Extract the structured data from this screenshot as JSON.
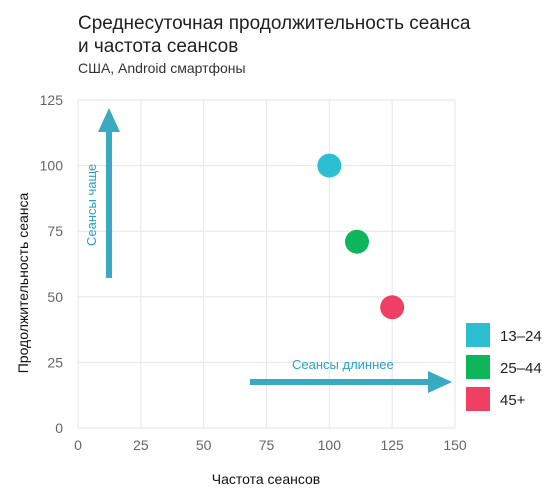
{
  "chart_data": {
    "type": "scatter",
    "title_line1": "Среднесуточная продолжительность сеанса",
    "title_line2": "и частота сеансов",
    "subtitle": "США, Android смартфоны",
    "xlabel": "Частота сеансов",
    "ylabel": "Продолжительность сеанса",
    "xlim": [
      0,
      150
    ],
    "ylim": [
      0,
      125
    ],
    "xticks": [
      0,
      25,
      50,
      75,
      100,
      125,
      150
    ],
    "yticks": [
      0,
      25,
      50,
      75,
      100,
      125
    ],
    "grid": true,
    "legend_position": "right",
    "points": [
      {
        "name": "13–24",
        "x": 100,
        "y": 100,
        "color": "#2bbfd1"
      },
      {
        "name": "25–44",
        "x": 111,
        "y": 71,
        "color": "#0fb55a"
      },
      {
        "name": "45+",
        "x": 125,
        "y": 46,
        "color": "#ef3f63"
      }
    ],
    "annotations": {
      "vertical_arrow": "Сеансы чаще",
      "horizontal_arrow": "Сеансы длиннее",
      "arrow_color": "#3aa9c2"
    }
  }
}
